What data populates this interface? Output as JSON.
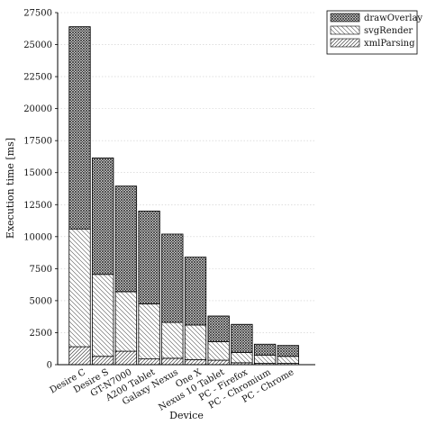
{
  "chart_data": {
    "type": "bar",
    "stacked": true,
    "xlabel": "Device",
    "ylabel": "Execution time [ms]",
    "ylim": [
      0,
      27500
    ],
    "yticks": [
      0,
      2500,
      5000,
      7500,
      10000,
      12500,
      15000,
      17500,
      20000,
      22500,
      25000,
      27500
    ],
    "grid": true,
    "legend_position": "top-right",
    "categories": [
      "Desire C",
      "Desire S",
      "GT-N7000",
      "A200 Tablet",
      "Galaxy Nexus",
      "One X",
      "Nexus 10 Tablet",
      "PC - Firefox",
      "PC - Chromium",
      "PC - Chrome"
    ],
    "series": [
      {
        "name": "xmlParsing",
        "values": [
          1400,
          650,
          1050,
          450,
          500,
          400,
          350,
          150,
          100,
          100
        ]
      },
      {
        "name": "svgRender",
        "values": [
          9200,
          6400,
          4650,
          4300,
          2800,
          2700,
          1450,
          800,
          650,
          550
        ]
      },
      {
        "name": "drawOverlay",
        "values": [
          15800,
          9100,
          8250,
          7250,
          6900,
          5300,
          2000,
          2200,
          850,
          850
        ]
      }
    ]
  }
}
